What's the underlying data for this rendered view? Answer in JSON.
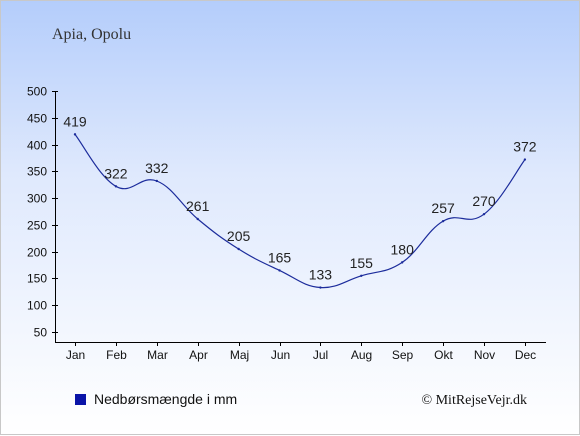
{
  "chart_data": {
    "type": "line",
    "title": "Apia, Opolu",
    "categories": [
      "Jan",
      "Feb",
      "Mar",
      "Apr",
      "Maj",
      "Jun",
      "Jul",
      "Aug",
      "Sep",
      "Okt",
      "Nov",
      "Dec"
    ],
    "series": [
      {
        "name": "Nedbørsmængde i mm",
        "values": [
          419,
          322,
          332,
          261,
          205,
          165,
          133,
          155,
          180,
          257,
          270,
          372
        ]
      }
    ],
    "ylim": [
      50,
      500
    ],
    "yticks": [
      50,
      100,
      150,
      200,
      250,
      300,
      350,
      400,
      450,
      500
    ],
    "grid": false,
    "legend_position": "bottom-left",
    "colors": {
      "line": "#1c2c9c",
      "legend_marker": "#0a14a8"
    }
  },
  "credit": "© MitRejseVejr.dk"
}
